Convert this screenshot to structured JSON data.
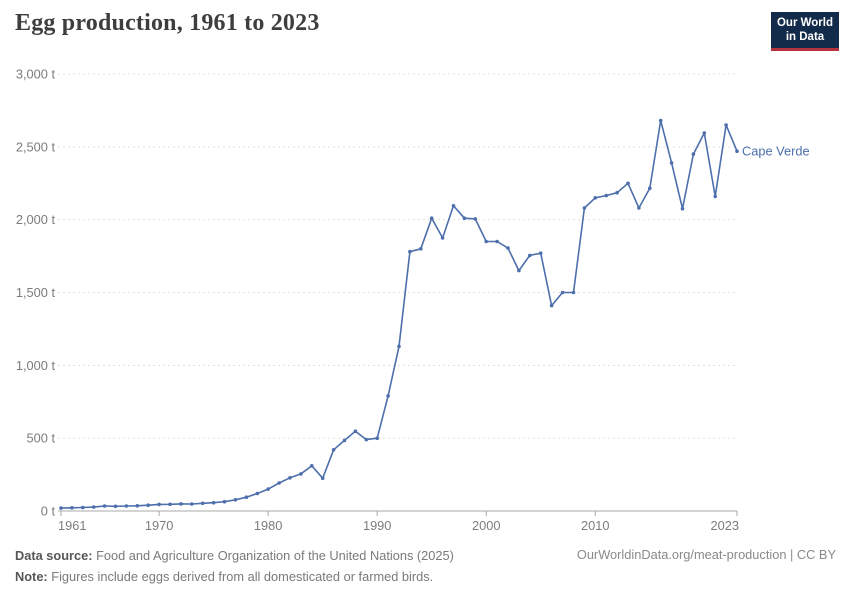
{
  "header": {
    "logo": {
      "line1": "Our World",
      "line2": "in Data"
    }
  },
  "chart_data": {
    "type": "line",
    "title": "Egg production, 1961 to 2023",
    "entity_label": "Cape Verde",
    "unit": "t",
    "xlim": [
      1961,
      2023
    ],
    "ylim": [
      0,
      3000
    ],
    "grid": "horizontal-dashed",
    "legend_position": "end-of-line-label",
    "line_color": "#4d6fac",
    "y_ticks": [
      0,
      500,
      1000,
      1500,
      2000,
      2500,
      3000
    ],
    "y_tick_labels": [
      "0 t",
      "500 t",
      "1,000 t",
      "1,500 t",
      "2,000 t",
      "2,500 t",
      "3,000 t"
    ],
    "x_ticks": [
      1961,
      1970,
      1980,
      1990,
      2000,
      2010,
      2023
    ],
    "x_tick_labels": [
      "1961",
      "1970",
      "1980",
      "1990",
      "2000",
      "2010",
      "2023"
    ],
    "x": [
      1961,
      1962,
      1963,
      1964,
      1965,
      1966,
      1967,
      1968,
      1969,
      1970,
      1971,
      1972,
      1973,
      1974,
      1975,
      1976,
      1977,
      1978,
      1979,
      1980,
      1981,
      1982,
      1983,
      1984,
      1985,
      1986,
      1987,
      1988,
      1989,
      1990,
      1991,
      1992,
      1993,
      1994,
      1995,
      1996,
      1997,
      1998,
      1999,
      2000,
      2001,
      2002,
      2003,
      2004,
      2005,
      2006,
      2007,
      2008,
      2009,
      2010,
      2011,
      2012,
      2013,
      2014,
      2015,
      2016,
      2017,
      2018,
      2019,
      2020,
      2021,
      2022,
      2023
    ],
    "series": [
      {
        "name": "Cape Verde",
        "values": [
          20,
          22,
          24,
          27,
          34,
          32,
          34,
          36,
          40,
          45,
          46,
          49,
          48,
          53,
          57,
          64,
          77,
          95,
          120,
          150,
          192,
          228,
          255,
          310,
          225,
          420,
          485,
          548,
          490,
          500,
          790,
          1130,
          1780,
          1800,
          2010,
          1875,
          2095,
          2010,
          2005,
          1850,
          1850,
          1805,
          1650,
          1755,
          1770,
          1410,
          1500,
          1500,
          2080,
          2150,
          2165,
          2185,
          2250,
          2080,
          2215,
          2680,
          2390,
          2075,
          2450,
          2595,
          2160,
          2650,
          2470
        ]
      }
    ]
  },
  "footer": {
    "source_label": "Data source:",
    "source_text": " Food and Agriculture Organization of the United Nations (2025)",
    "note_label": "Note:",
    "note_text": " Figures include eggs derived from all domesticated or farmed birds.",
    "link_text": "OurWorldinData.org/meat-production | CC BY"
  },
  "colors": {
    "line": "#4d6fac",
    "logo_bg": "#132b4a",
    "logo_accent": "#b5333f",
    "gridline": "#e0e0e0",
    "axis": "#a9a9a9",
    "tick_text": "#7c7c7c"
  }
}
